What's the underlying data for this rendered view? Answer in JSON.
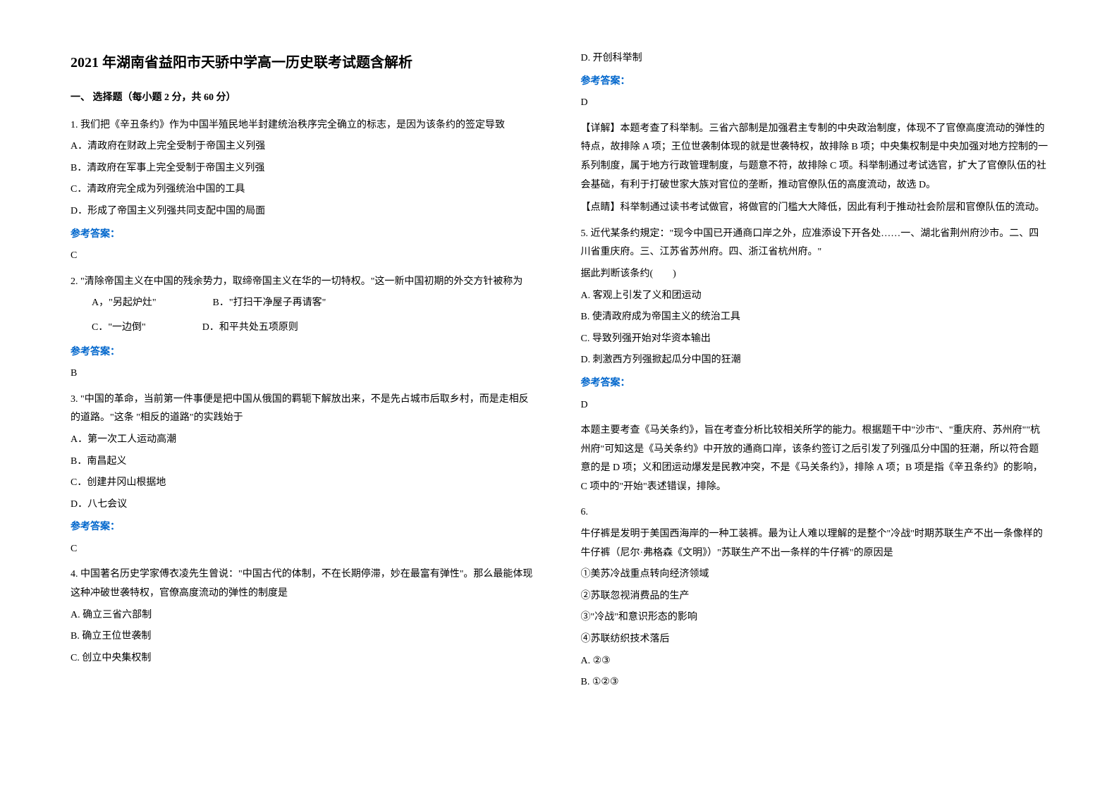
{
  "title": "2021 年湖南省益阳市天骄中学高一历史联考试题含解析",
  "section_header": "一、 选择题（每小题 2 分，共 60 分）",
  "answer_label": "参考答案：",
  "colors": {
    "text": "#000000",
    "answer_label": "#0066cc",
    "background": "#ffffff"
  },
  "typography": {
    "title_fontsize": 20,
    "body_fontsize": 14,
    "line_height": 1.9,
    "font_family": "SimSun"
  },
  "left_column": {
    "q1": {
      "text": "1. 我们把《辛丑条约》作为中国半殖民地半封建统治秩序完全确立的标志，是因为该条约的签定导致",
      "options": {
        "a": "A．清政府在财政上完全受制于帝国主义列强",
        "b": "B．清政府在军事上完全受制于帝国主义列强",
        "c": "C．清政府完全成为列强统治中国的工具",
        "d": "D．形成了帝国主义列强共同支配中国的局面"
      },
      "answer": "C"
    },
    "q2": {
      "text": "2. \"清除帝国主义在中国的残余势力，取缔帝国主义在华的一切特权。\"这一新中国初期的外交方针被称为",
      "options": {
        "a": "A，\"另起炉灶\"",
        "b": "B．\"打扫干净屋子再请客\"",
        "c": "C．\"一边倒\"",
        "d": "D．和平共处五项原则"
      },
      "answer": "B"
    },
    "q3": {
      "text": "3. \"中国的革命，当前第一件事便是把中国从俄国的羁轭下解放出来，不是先占城市后取乡村，而是走相反的道路。\"这条 \"相反的道路\"的实践始于",
      "options": {
        "a": "A．第一次工人运动高潮",
        "b": "B．南昌起义",
        "c": "C．创建井冈山根据地",
        "d": "D．八七会议"
      },
      "answer": "C"
    },
    "q4": {
      "text": "4. 中国著名历史学家傅衣凌先生曾说：\"中国古代的体制，不在长期停滞，妙在最富有弹性\"。那么最能体现这种冲破世袭特权，官僚高度流动的弹性的制度是",
      "options": {
        "a": "A. 确立三省六部制",
        "b": "B. 确立王位世袭制",
        "c": "C. 创立中央集权制"
      }
    }
  },
  "right_column": {
    "q4_continued": {
      "option_d": "D. 开创科举制",
      "answer": "D",
      "explanation1": "【详解】本题考查了科举制。三省六部制是加强君主专制的中央政治制度，体现不了官僚高度流动的弹性的特点，故排除 A 项；王位世袭制体现的就是世袭特权，故排除 B 项；中央集权制是中央加强对地方控制的一系列制度，属于地方行政管理制度，与题意不符，故排除 C 项。科举制通过考试选官，扩大了官僚队伍的社会基础，有利于打破世家大族对官位的垄断，推动官僚队伍的高度流动，故选 D。",
      "explanation2": "【点睛】科举制通过读书考试做官，将做官的门槛大大降低，因此有利于推动社会阶层和官僚队伍的流动。"
    },
    "q5": {
      "text": "5. 近代某条约規定：\"现今中国已开通商口岸之外，应准添设下开各处……一、湖北省荆州府沙市。二、四川省重庆府。三、江苏省苏州府。四、浙江省杭州府。\"",
      "text2": "据此判断该条约(　　)",
      "options": {
        "a": "A. 客观上引发了义和团运动",
        "b": "B. 使清政府成为帝国主义的统治工具",
        "c": "C. 导致列强开始对华资本输出",
        "d": "D. 刺激西方列强掀起瓜分中国的狂潮"
      },
      "answer": "D",
      "explanation": "本题主要考查《马关条约》，旨在考查分析比较相关所学的能力。根据题干中\"沙市\"、\"重庆府、苏州府\"\"杭州府\"可知这是《马关条约》中开放的通商口岸，该条约签订之后引发了列强瓜分中国的狂潮，所以符合题意的是 D 项；义和团运动爆发是民教冲突，不是《马关条约》，排除 A 项；B 项是指《辛丑条约》的影响，C 项中的\"开始\"表述错误，排除。"
    },
    "q6": {
      "text": "6.",
      "text2": "牛仔裤是发明于美国西海岸的一种工装裤。最为让人难以理解的是整个\"冷战\"时期苏联生产不出一条像样的牛仔裤（尼尔·弗格森《文明》）\"苏联生产不出一条样的牛仔裤\"的原因是",
      "options": {
        "opt1": "①美苏冷战重点转向经济领域",
        "opt2": "②苏联忽视消费品的生产",
        "opt3": "③\"冷战\"和意识形态的影响",
        "opt4": "④苏联纺织技术落后",
        "a": "A. ②③",
        "b": "B. ①②③"
      }
    }
  }
}
